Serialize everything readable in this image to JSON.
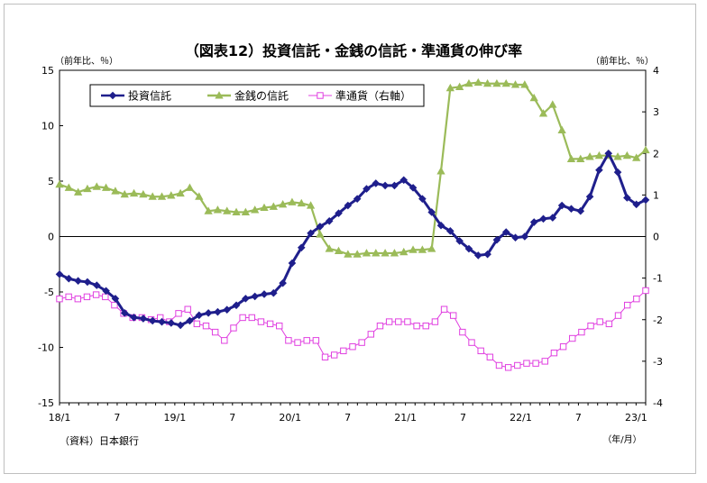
{
  "chart_data": {
    "type": "line",
    "title": "（図表12）投資信託・金銭の信託・準通貨の伸び率",
    "ylabel_left": "（前年比、％）",
    "ylabel_right": "（前年比、％）",
    "xlabel": "（年/月）",
    "source": "（資料）日本銀行",
    "x_tick_labels": [
      "18/1",
      "7",
      "19/1",
      "7",
      "20/1",
      "7",
      "21/1",
      "7",
      "22/1",
      "7",
      "23/1"
    ],
    "y_left": {
      "ylim": [
        -15,
        15
      ],
      "ticks": [
        "15",
        "10",
        "5",
        "0",
        "-5",
        "-10",
        "-15"
      ]
    },
    "y_right": {
      "ylim": [
        -4,
        4
      ],
      "ticks": [
        "4",
        "3",
        "2",
        "1",
        "0",
        "-1",
        "-2",
        "-3",
        "-4"
      ]
    },
    "legend_position": "top-left",
    "series": [
      {
        "name": "投資信託",
        "axis": "left",
        "color": "#1f1f8c",
        "marker": "diamond",
        "values": [
          -3.4,
          -3.8,
          -4.0,
          -4.1,
          -4.4,
          -4.9,
          -5.6,
          -6.9,
          -7.3,
          -7.4,
          -7.6,
          -7.7,
          -7.8,
          -8.0,
          -7.6,
          -7.1,
          -6.9,
          -6.8,
          -6.6,
          -6.2,
          -5.6,
          -5.4,
          -5.2,
          -5.1,
          -4.2,
          -2.4,
          -1.0,
          0.3,
          0.9,
          1.4,
          2.1,
          2.8,
          3.4,
          4.3,
          4.8,
          4.6,
          4.6,
          5.1,
          4.4,
          3.4,
          2.2,
          1.0,
          0.5,
          -0.4,
          -1.1,
          -1.7,
          -1.6,
          -0.3,
          0.4,
          -0.1,
          0.0,
          1.3,
          1.6,
          1.7,
          2.8,
          2.5,
          2.3,
          3.6,
          6.0,
          7.5,
          5.8,
          3.5,
          2.9,
          3.3
        ]
      },
      {
        "name": "金銭の信託",
        "axis": "left",
        "color": "#9bbb59",
        "marker": "triangle",
        "values": [
          4.7,
          4.4,
          4.0,
          4.3,
          4.5,
          4.4,
          4.1,
          3.8,
          3.9,
          3.8,
          3.6,
          3.6,
          3.7,
          3.9,
          4.4,
          3.6,
          2.3,
          2.4,
          2.3,
          2.2,
          2.2,
          2.4,
          2.6,
          2.7,
          2.9,
          3.1,
          3.0,
          2.8,
          0.2,
          -1.1,
          -1.3,
          -1.6,
          -1.6,
          -1.5,
          -1.5,
          -1.5,
          -1.5,
          -1.4,
          -1.2,
          -1.2,
          -1.1,
          5.9,
          13.4,
          13.5,
          13.8,
          13.9,
          13.8,
          13.8,
          13.8,
          13.7,
          13.7,
          12.5,
          11.1,
          11.9,
          9.6,
          7.0,
          7.0,
          7.2,
          7.3,
          7.3,
          7.2,
          7.3,
          7.1,
          7.8
        ]
      },
      {
        "name": "準通貨（右軸）",
        "axis": "right",
        "color": "#e040e0",
        "marker": "square",
        "values": [
          -1.5,
          -1.45,
          -1.5,
          -1.45,
          -1.4,
          -1.45,
          -1.65,
          -1.85,
          -1.95,
          -1.95,
          -2.0,
          -1.95,
          -2.05,
          -1.85,
          -1.75,
          -2.1,
          -2.15,
          -2.3,
          -2.5,
          -2.2,
          -1.95,
          -1.95,
          -2.05,
          -2.1,
          -2.15,
          -2.5,
          -2.55,
          -2.5,
          -2.5,
          -2.9,
          -2.85,
          -2.75,
          -2.65,
          -2.55,
          -2.35,
          -2.15,
          -2.05,
          -2.05,
          -2.05,
          -2.15,
          -2.15,
          -2.05,
          -1.75,
          -1.9,
          -2.3,
          -2.55,
          -2.75,
          -2.9,
          -3.1,
          -3.15,
          -3.1,
          -3.05,
          -3.05,
          -3.0,
          -2.8,
          -2.65,
          -2.45,
          -2.3,
          -2.15,
          -2.05,
          -2.1,
          -1.9,
          -1.65,
          -1.5,
          -1.3
        ]
      }
    ]
  }
}
